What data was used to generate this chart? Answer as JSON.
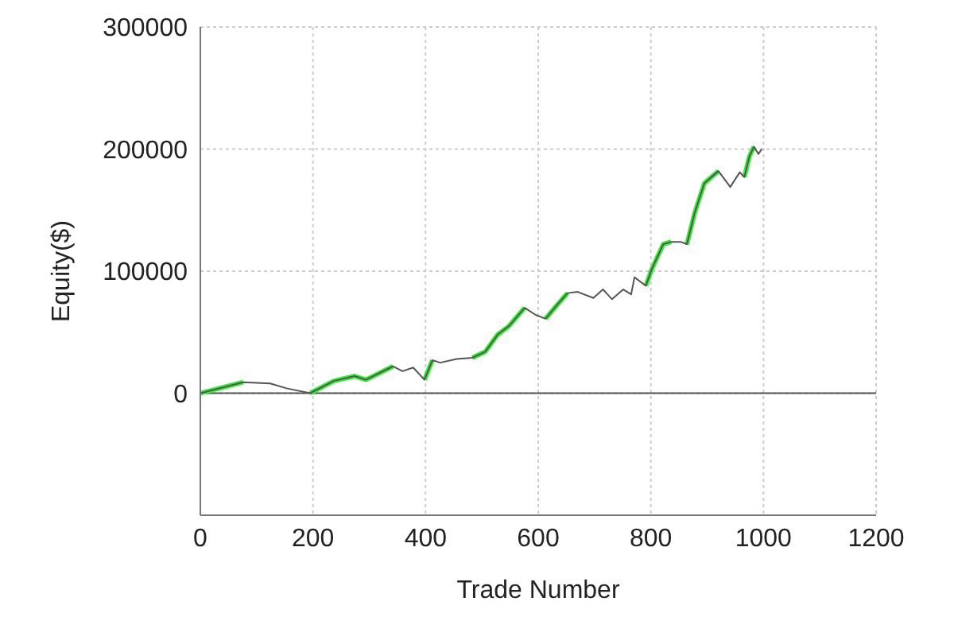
{
  "chart_data": {
    "type": "line",
    "xlabel": "Trade Number",
    "ylabel": "Equity($)",
    "x": [
      0,
      76,
      124,
      153,
      195,
      237,
      274,
      294,
      342,
      359,
      378,
      398,
      412,
      426,
      455,
      483,
      506,
      528,
      548,
      576,
      596,
      613,
      633,
      652,
      670,
      698,
      715,
      731,
      751,
      765,
      771,
      791,
      802,
      822,
      836,
      853,
      864,
      878,
      895,
      920,
      941,
      958,
      966,
      975,
      983,
      991,
      997
    ],
    "series": [
      {
        "color": "#30ee30",
        "x": [
          0,
          76
        ],
        "values": [
          0,
          9000
        ]
      },
      {
        "color": "#31ee31",
        "x": [
          195,
          237,
          274,
          294,
          342
        ],
        "values": [
          0,
          10000,
          14000,
          11000,
          22000
        ]
      },
      {
        "color": "#32ee32",
        "x": [
          398,
          412
        ],
        "values": [
          11000,
          27000
        ]
      },
      {
        "color": "#33ee33",
        "x": [
          483,
          506,
          528,
          548,
          576
        ],
        "values": [
          29000,
          34000,
          48000,
          55000,
          70000
        ]
      },
      {
        "color": "#34ee34",
        "x": [
          613,
          633,
          652
        ],
        "values": [
          61000,
          72000,
          82000
        ]
      },
      {
        "color": "#35ee35",
        "x": [
          791,
          802,
          822,
          836
        ],
        "values": [
          88000,
          102000,
          122000,
          124000
        ]
      },
      {
        "color": "#36ee36",
        "x": [
          864,
          878,
          895,
          920
        ],
        "values": [
          122000,
          148000,
          172000,
          182000
        ]
      },
      {
        "color": "#37ee37",
        "x": [
          966,
          975,
          983
        ],
        "values": [
          177000,
          194000,
          202000
        ]
      },
      {
        "color": "#555555",
        "values": [
          0,
          9000,
          8000,
          4000,
          0,
          10000,
          14000,
          11000,
          22000,
          18000,
          21000,
          11000,
          27000,
          25000,
          28000,
          29000,
          34000,
          48000,
          55000,
          70000,
          64000,
          61000,
          72000,
          82000,
          83000,
          78000,
          85000,
          77000,
          85000,
          81000,
          95000,
          88000,
          102000,
          122000,
          124000,
          124000,
          122000,
          148000,
          172000,
          182000,
          169000,
          181000,
          177000,
          194000,
          202000,
          196000,
          200000
        ]
      }
    ],
    "xlim": [
      0,
      1200
    ],
    "xticks": [
      0,
      200,
      400,
      600,
      800,
      1000,
      1200
    ],
    "ylim": [
      -100000,
      300000
    ],
    "yticks": [
      {
        "value": -100000,
        "label": null
      },
      0,
      100000,
      200000,
      300000
    ],
    "grid": true,
    "line_style": "solid",
    "marker": "none",
    "ref_lines": [
      {
        "axis": "y",
        "value": 0,
        "color": "#555555",
        "line_style": "solid"
      }
    ]
  }
}
